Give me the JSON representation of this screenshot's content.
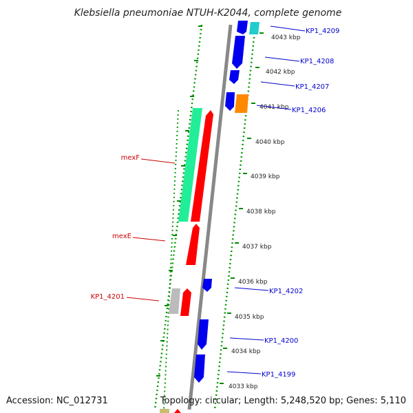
{
  "title": "Klebsiella pneumoniae NTUH-K2044, complete genome",
  "footer": {
    "accession": "Accession: NC_012731",
    "topology": "Topology: circular; Length: 5,248,520 bp; Genes: 5,110"
  },
  "colors": {
    "forward_strand": "#0000ff",
    "reverse_strand": "#ff0000",
    "backbone": "#888888",
    "grid_tick": "#008800",
    "label_right": "#0000cc",
    "label_left": "#cc0000"
  },
  "kbp_labels": [
    "4043 kbp",
    "4042 kbp",
    "4041 kbp",
    "4040 kbp",
    "4039 kbp",
    "4038 kbp",
    "4037 kbp",
    "4036 kbp",
    "4035 kbp",
    "4034 kbp",
    "4033 kbp"
  ],
  "right_labels": [
    "KP1_4209",
    "KP1_4208",
    "KP1_4207",
    "KP1_4206",
    "KP1_4202",
    "KP1_4200",
    "KP1_4199"
  ],
  "left_labels": [
    "mexF",
    "mexE",
    "KP1_4201"
  ]
}
